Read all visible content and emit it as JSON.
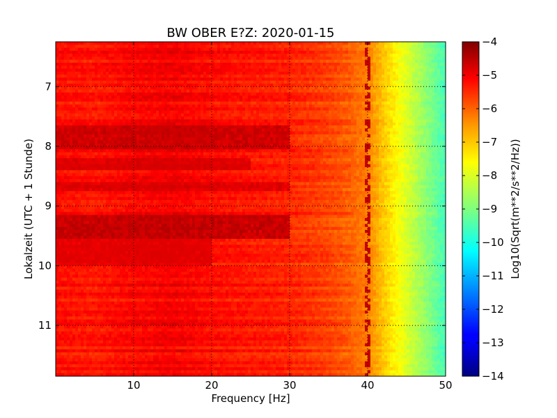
{
  "chart_data": {
    "type": "heatmap",
    "title": "BW OBER E?Z: 2020-01-15",
    "xlabel": "Frequency [Hz]",
    "ylabel": "Lokalzeit (UTC + 1 Stunde)",
    "xlim": [
      0,
      50
    ],
    "ylim": [
      11.85,
      6.25
    ],
    "x_ticks": [
      10,
      20,
      30,
      40,
      50
    ],
    "y_ticks": [
      7,
      8,
      9,
      10,
      11
    ],
    "grid": true,
    "colorbar": {
      "label": "Log10(Sqrt(m**2/s**2/Hz))",
      "range": [
        -14,
        -4
      ],
      "ticks": [
        -4,
        -5,
        -6,
        -7,
        -8,
        -9,
        -10,
        -11,
        -12,
        -13,
        -14
      ],
      "colormap": "jet"
    },
    "frequency_profile": {
      "frequency_hz": [
        0,
        5,
        10,
        15,
        20,
        25,
        30,
        35,
        38,
        40,
        42,
        44,
        46,
        48,
        50
      ],
      "level": [
        -5.4,
        -5.5,
        -5.3,
        -5.2,
        -5.4,
        -5.5,
        -5.6,
        -5.9,
        -6.2,
        -6.5,
        -7.2,
        -7.8,
        -8.4,
        -9.0,
        -9.6
      ]
    },
    "high_energy_bands": [
      {
        "time_start": 7.65,
        "time_end": 8.05,
        "freq_start": 0,
        "freq_end": 30,
        "level": -4.6
      },
      {
        "time_start": 8.2,
        "time_end": 8.4,
        "freq_start": 0,
        "freq_end": 25,
        "level": -4.8
      },
      {
        "time_start": 8.6,
        "time_end": 8.75,
        "freq_start": 0,
        "freq_end": 30,
        "level": -4.8
      },
      {
        "time_start": 9.15,
        "time_end": 9.55,
        "freq_start": 0,
        "freq_end": 30,
        "level": -4.5
      },
      {
        "time_start": 9.55,
        "time_end": 10.0,
        "freq_start": 0,
        "freq_end": 20,
        "level": -4.9
      }
    ],
    "line_at_40hz": {
      "frequency_hz": 40,
      "level": -4.7
    }
  }
}
